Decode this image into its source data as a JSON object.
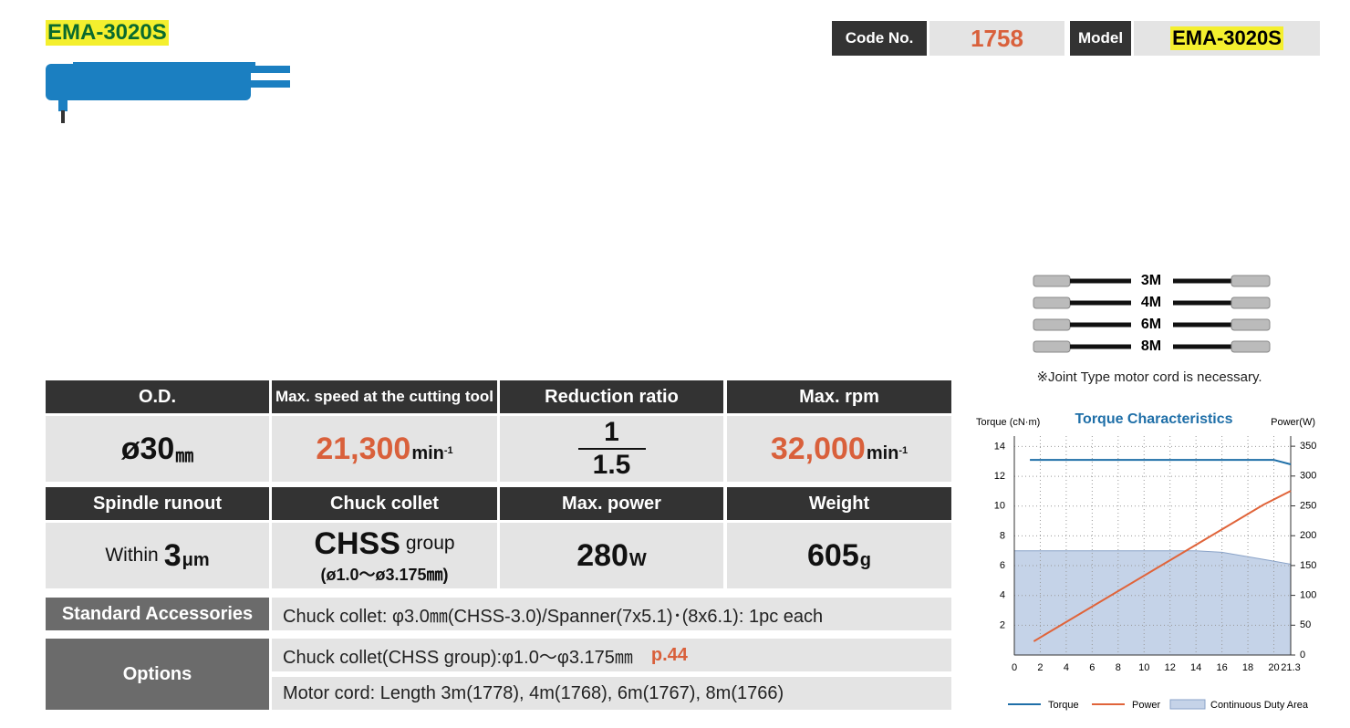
{
  "header": {
    "title": "EMA-3020S",
    "code_label": "Code No.",
    "code": "1758",
    "model_label": "Model",
    "model": "EMA-3020S"
  },
  "cords": {
    "lengths": [
      "3M",
      "4M",
      "6M",
      "8M"
    ],
    "note": "※Joint Type motor cord is necessary."
  },
  "specs": [
    {
      "label": "O.D.",
      "value": "ø30",
      "unit": "㎜"
    },
    {
      "label": "Max. speed at the cutting tool",
      "value": "21,300",
      "unit": "min",
      "sup": "-1"
    },
    {
      "label": "Reduction ratio",
      "numerator": "1",
      "denominator": "1.5"
    },
    {
      "label": "Max. rpm",
      "value": "32,000",
      "unit": "min",
      "sup": "-1"
    },
    {
      "label": "Spindle runout",
      "prefix": "Within",
      "value": "3",
      "unit": "μm"
    },
    {
      "label": "Chuck collet",
      "value": "CHSS",
      "unit": "group",
      "note": "(ø1.0～ø3.175㎜)"
    },
    {
      "label": "Max. power",
      "value": "280",
      "unit": "W"
    },
    {
      "label": "Weight",
      "value": "605",
      "unit": "g"
    }
  ],
  "accessories": {
    "label": "Standard Accessories",
    "text": "Chuck collet:  φ3.0㎜(CHSS-3.0)/Spanner(7x5.1)･(8x6.1): 1pc each"
  },
  "options": {
    "label": "Options",
    "rows": [
      {
        "text": "Chuck collet(CHSS group):φ1.0～φ3.175㎜",
        "ref": "p.44"
      },
      {
        "text": "Motor cord: Length 3m(1778), 4m(1768), 6m(1767), 8m(1766)"
      }
    ]
  },
  "chart_data": {
    "type": "line",
    "title": "Torque Characteristics",
    "ylabel": "Torque (cN·m)",
    "y2label": "Power(W)",
    "xlim": [
      0,
      21.3
    ],
    "xticks": [
      0,
      2,
      4,
      6,
      8,
      10,
      12,
      14,
      16,
      18,
      20,
      21.3
    ],
    "ylim": [
      0,
      14.7
    ],
    "yticks": [
      2,
      4,
      6,
      8,
      10,
      12,
      14
    ],
    "y2lim": [
      0,
      367
    ],
    "y2ticks": [
      0,
      50,
      100,
      150,
      200,
      250,
      300,
      350
    ],
    "grid": true,
    "series": [
      {
        "name": "Torque",
        "color": "#1f6fa8",
        "x": [
          1.2,
          20,
          21.3
        ],
        "values": [
          13.1,
          13.1,
          12.8
        ]
      },
      {
        "name": "Power",
        "color": "#e0643a",
        "axis": "y2",
        "x": [
          1.5,
          19.2,
          21.3
        ],
        "values": [
          23,
          252,
          275
        ]
      },
      {
        "name": "Continuous Duty Area",
        "color": "#c5d3e8",
        "type": "area",
        "x": [
          0,
          14,
          16,
          18,
          20,
          21.3
        ],
        "values": [
          7,
          7,
          6.9,
          6.6,
          6.3,
          6.1
        ]
      }
    ]
  }
}
